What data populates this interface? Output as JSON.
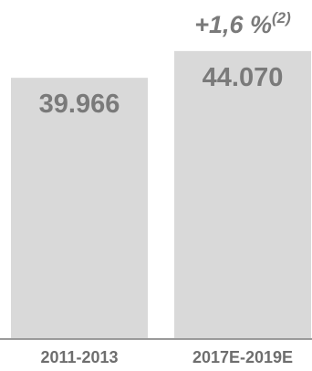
{
  "chart_data": {
    "type": "bar",
    "categories": [
      "2011-2013",
      "2017E-2019E"
    ],
    "values": [
      39966,
      44070
    ],
    "value_labels": [
      "39.966",
      "44.070"
    ],
    "ylim": [
      0,
      47700
    ],
    "grid": false,
    "legend": "none",
    "bar_color": "#d9d9d9",
    "axis_color": "#9a9a9a",
    "label_color": "#7a7a7a",
    "annotation": {
      "text": "+1,6 %",
      "superscript": "(2)",
      "category": "2017E-2019E"
    }
  }
}
